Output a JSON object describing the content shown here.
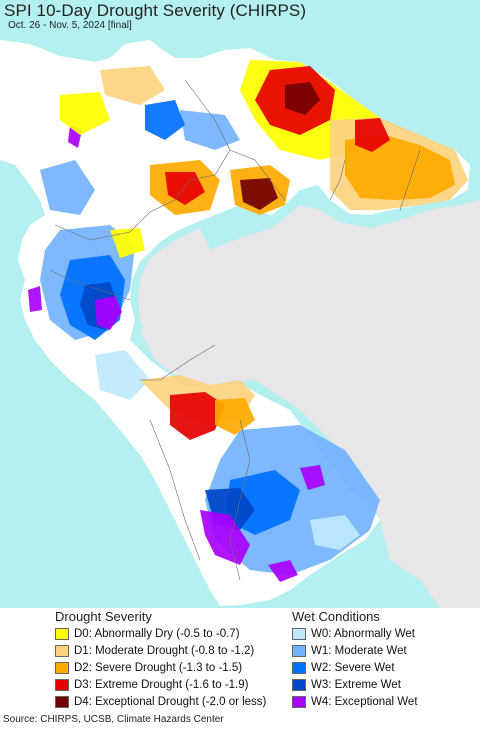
{
  "title": "SPI 10-Day Drought Severity (CHIRPS)",
  "subtitle": "Oct. 26 - Nov. 5, 2024 [final]",
  "legend": {
    "drought_title": "Drought Severity",
    "wet_title": "Wet Conditions",
    "drought": [
      {
        "label": "D0: Abnormally Dry (-0.5 to -0.7)",
        "color": "#ffff00"
      },
      {
        "label": "D1: Moderate Drought (-0.8 to -1.2)",
        "color": "#fcd37f"
      },
      {
        "label": "D2: Severe Drought (-1.3 to -1.5)",
        "color": "#ffaa00"
      },
      {
        "label": "D3: Extreme Drought (-1.6 to -1.9)",
        "color": "#e60000"
      },
      {
        "label": "D4: Exceptional Drought (-2.0 or less)",
        "color": "#730000"
      }
    ],
    "wet": [
      {
        "label": "W0: Abnormally Wet",
        "color": "#bee8ff"
      },
      {
        "label": "W1: Moderate Wet",
        "color": "#73b2ff"
      },
      {
        "label": "W2: Severe Wet",
        "color": "#0070ff"
      },
      {
        "label": "W3: Extreme Wet",
        "color": "#0046c8"
      },
      {
        "label": "W4: Exceptional Wet",
        "color": "#aa00ff"
      }
    ]
  },
  "map": {
    "ocean_color": "#b4f0f0",
    "outside_color": "#e9e6ea",
    "land_base_color": "#ffffff"
  },
  "source": "Source: CHIRPS, UCSB, Climate Hazards Center"
}
